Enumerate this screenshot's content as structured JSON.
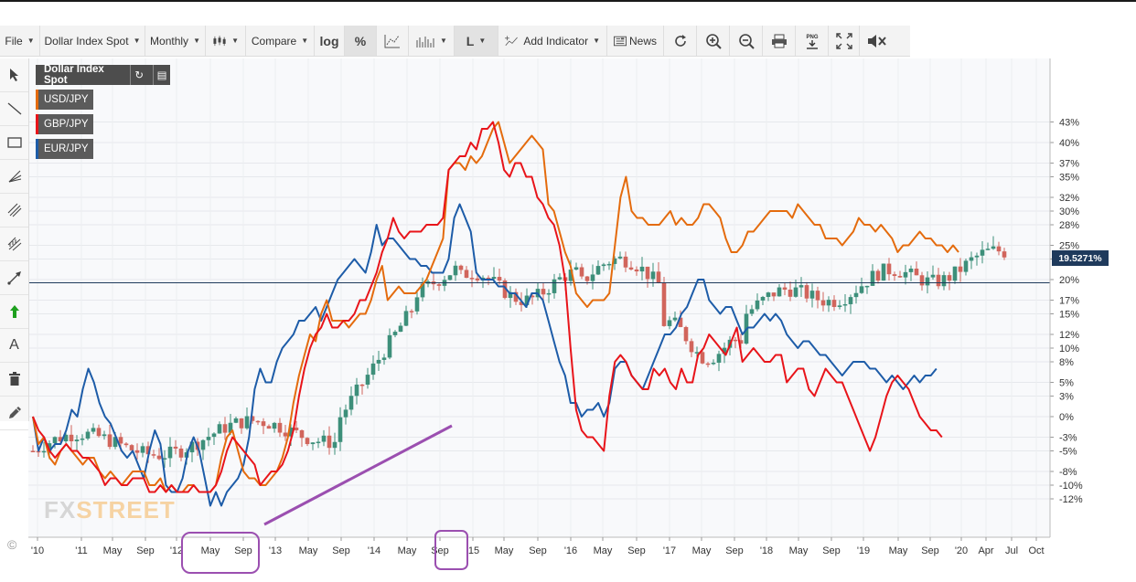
{
  "toolbar": {
    "file": "File",
    "instrument": "Dollar Index Spot",
    "interval": "Monthly",
    "compare": "Compare",
    "log": "log",
    "percent": "%",
    "line_type": "L",
    "add_indicator": "Add Indicator",
    "news": "News"
  },
  "legend": {
    "main": "Dollar Index Spot",
    "series": [
      "USD/JPY",
      "GBP/JPY",
      "EUR/JPY"
    ]
  },
  "price_badge": "19.5271%",
  "watermark": {
    "fx": "FX",
    "street": "STREET"
  },
  "copyright": "©",
  "colors": {
    "usdjpy": "#e46b0d",
    "gbpjpy": "#e8141a",
    "eurjpy": "#1d5ca8",
    "candle_up": "#3d8f7a",
    "candle_down": "#d1655c",
    "price_line": "#1f3a5c",
    "annotation": "#9b4fb0"
  },
  "chart_data": {
    "type": "line",
    "x_ticks": [
      "'10",
      "'11",
      "May",
      "Sep",
      "'12",
      "May",
      "Sep",
      "'13",
      "May",
      "Sep",
      "'14",
      "May",
      "Sep",
      "'15",
      "May",
      "Sep",
      "'16",
      "May",
      "Sep",
      "'17",
      "May",
      "Sep",
      "'18",
      "May",
      "Sep",
      "'19",
      "May",
      "Sep",
      "'20",
      "Apr",
      "Jul",
      "Oct"
    ],
    "y_ticks": [
      "43%",
      "40%",
      "37%",
      "35%",
      "32%",
      "30%",
      "28%",
      "25%",
      "23%",
      "20%",
      "17%",
      "15%",
      "12%",
      "10%",
      "8%",
      "5%",
      "3%",
      "0%",
      "-3%",
      "-5%",
      "-8%",
      "-10%",
      "-12%"
    ],
    "x_start": "2010-01",
    "current_value": 19.53,
    "series": [
      {
        "name": "USD/JPY",
        "values": [
          0,
          -4,
          -3,
          -6,
          -7,
          -5,
          -4,
          -5,
          -6,
          -7,
          -6,
          -6,
          -8,
          -9,
          -8,
          -9,
          -10,
          -9,
          -8,
          -8,
          -8,
          -10,
          -10,
          -9,
          -11,
          -10,
          -11,
          -11,
          -10,
          -10,
          -11,
          -11,
          -11,
          -10,
          -6,
          -3,
          -2,
          -5,
          -8,
          -9,
          -9,
          -10,
          -10,
          -9,
          -8,
          -6,
          -3,
          2,
          6,
          9,
          12,
          11,
          15,
          17,
          14,
          14,
          14,
          13,
          14,
          15,
          15,
          17,
          20,
          22,
          17,
          18,
          19,
          18,
          18,
          18,
          19,
          20,
          22,
          24,
          26,
          36,
          37,
          37,
          36,
          38,
          37,
          38,
          40,
          42,
          43,
          40,
          37,
          38,
          39,
          40,
          41,
          40,
          39,
          31,
          30,
          27,
          24,
          22,
          18,
          17,
          16,
          17,
          17,
          17,
          18,
          25,
          32,
          35,
          30,
          29,
          29,
          28,
          28,
          28,
          29,
          30,
          28,
          29,
          28,
          28,
          29,
          31,
          31,
          30,
          29,
          26,
          24,
          24,
          25,
          27,
          27,
          28,
          29,
          30,
          30,
          30,
          30,
          29,
          31,
          30,
          29,
          28,
          28,
          26,
          26,
          26,
          25,
          26,
          27,
          29,
          28,
          28,
          27,
          28,
          27,
          26,
          24,
          25,
          25,
          26,
          27,
          26,
          26,
          25,
          25,
          24,
          25,
          24
        ]
      },
      {
        "name": "GBP/JPY",
        "values": [
          0,
          -2,
          -3,
          -5,
          -6,
          -5,
          -4,
          -5,
          -5,
          -6,
          -6,
          -7,
          -8,
          -10,
          -9,
          -9,
          -10,
          -10,
          -9,
          -9,
          -9,
          -11,
          -11,
          -10,
          -11,
          -10,
          -11,
          -11,
          -11,
          -10,
          -11,
          -11,
          -11,
          -10,
          -8,
          -5,
          -3,
          -4,
          -5,
          -6,
          -7,
          -10,
          -9,
          -8,
          -8,
          -7,
          -5,
          -2,
          3,
          7,
          10,
          12,
          13,
          15,
          13,
          13,
          14,
          14,
          15,
          17,
          17,
          19,
          21,
          24,
          26,
          29,
          27,
          26,
          27,
          27,
          27,
          28,
          28,
          28,
          29,
          36,
          37,
          38,
          38,
          40,
          39,
          42,
          42,
          43,
          40,
          36,
          35,
          37,
          37,
          35,
          35,
          32,
          31,
          29,
          28,
          25,
          20,
          10,
          1,
          -2,
          -3,
          -3,
          -4,
          -5,
          3,
          8,
          9,
          8,
          6,
          5,
          4,
          4,
          7,
          6,
          7,
          5,
          4,
          7,
          5,
          5,
          9,
          10,
          12,
          11,
          10,
          9,
          11,
          13,
          8,
          9,
          10,
          9,
          8,
          8,
          9,
          9,
          5,
          6,
          7,
          7,
          4,
          3,
          5,
          7,
          6,
          5,
          5,
          3,
          1,
          -1,
          -3,
          -5,
          -3,
          0,
          3,
          5,
          6,
          5,
          4,
          2,
          0,
          -1,
          -2,
          -2,
          -3
        ]
      },
      {
        "name": "EUR/JPY",
        "values": [
          0,
          -5,
          -3,
          -5,
          -4,
          -4,
          -2,
          1,
          0,
          4,
          7,
          5,
          2,
          0,
          -1,
          -3,
          -5,
          -6,
          -5,
          -7,
          -9,
          -5,
          -2,
          -4,
          -10,
          -11,
          -11,
          -9,
          -5,
          -3,
          -5,
          -9,
          -13,
          -11,
          -13,
          -11,
          -10,
          -9,
          -7,
          -3,
          4,
          7,
          5,
          5,
          8,
          10,
          11,
          12,
          14,
          14,
          15,
          16,
          14,
          16,
          18,
          20,
          21,
          22,
          23,
          22,
          21,
          24,
          28,
          25,
          26,
          26,
          25,
          24,
          23,
          23,
          22,
          22,
          21,
          21,
          21,
          23,
          29,
          31,
          29,
          27,
          21,
          20,
          20,
          20,
          19,
          19,
          18,
          18,
          17,
          16,
          18,
          18,
          17,
          14,
          11,
          8,
          6,
          2,
          2,
          0,
          1,
          1,
          2,
          0,
          2,
          7,
          8,
          8,
          6,
          5,
          4,
          6,
          8,
          10,
          12,
          12,
          13,
          15,
          16,
          18,
          20,
          20,
          17,
          16,
          15,
          16,
          16,
          14,
          12,
          13,
          13,
          14,
          15,
          14,
          15,
          14,
          12,
          11,
          10,
          11,
          11,
          10,
          9,
          9,
          8,
          7,
          6,
          7,
          8,
          8,
          8,
          7,
          7,
          6,
          5,
          6,
          5,
          4,
          5,
          6,
          5,
          6,
          6,
          7
        ]
      }
    ]
  }
}
